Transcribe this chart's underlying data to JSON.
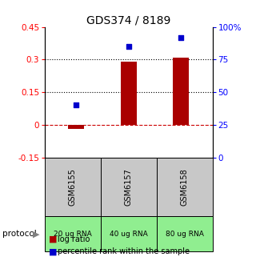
{
  "title": "GDS374 / 8189",
  "samples": [
    "GSM6155",
    "GSM6157",
    "GSM6158"
  ],
  "protocols": [
    "20 ug RNA",
    "40 ug RNA",
    "80 ug RNA"
  ],
  "log_ratios": [
    -0.02,
    0.29,
    0.31
  ],
  "percentiles": [
    40,
    85,
    92
  ],
  "left_ylim": [
    -0.15,
    0.45
  ],
  "right_ylim": [
    0,
    100
  ],
  "left_yticks": [
    -0.15,
    0,
    0.15,
    0.3,
    0.45
  ],
  "right_yticks": [
    0,
    25,
    50,
    75,
    100
  ],
  "right_yticklabels": [
    "0",
    "25",
    "50",
    "75",
    "100%"
  ],
  "hlines_dotted": [
    0.15,
    0.3
  ],
  "hline_dashed": 0.0,
  "bar_color": "#aa0000",
  "scatter_color": "#0000cc",
  "gray_box_color": "#c8c8c8",
  "green_box_color": "#90ee90",
  "bar_width": 0.3,
  "title_fontsize": 10,
  "tick_fontsize": 7.5,
  "label_fontsize": 8
}
